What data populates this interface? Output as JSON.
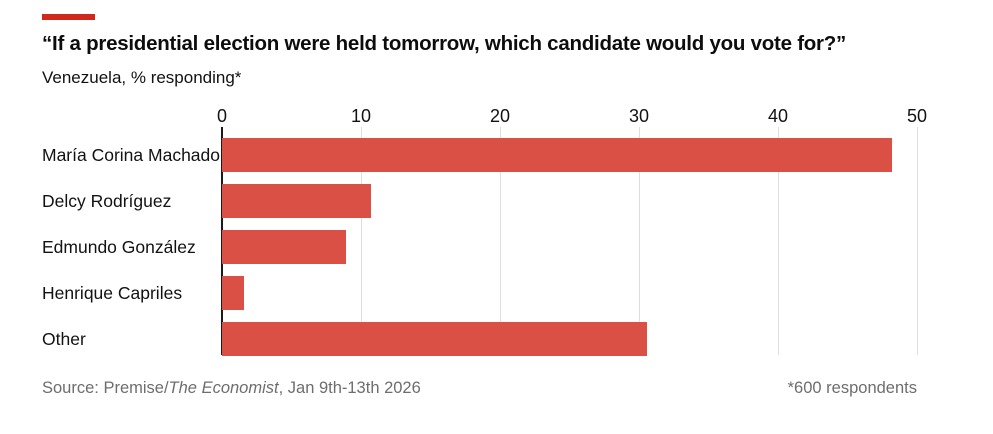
{
  "header": {
    "title": "“If a presidential election were held tomorrow, which candidate would you vote for?”",
    "subtitle": "Venezuela, % responding*"
  },
  "chart_data": {
    "type": "bar",
    "orientation": "horizontal",
    "title": "“If a presidential election were held tomorrow, which candidate would you vote for?”",
    "subtitle": "Venezuela, % responding*",
    "categories": [
      "María Corina Machado",
      "Delcy Rodríguez",
      "Edmundo González",
      "Henrique Capriles",
      "Other"
    ],
    "values": [
      48.2,
      10.7,
      8.9,
      1.6,
      30.6
    ],
    "x_ticks": [
      0,
      10,
      20,
      30,
      40,
      50
    ],
    "xlim": [
      0,
      50
    ],
    "xlabel": "",
    "ylabel": "",
    "grid": "vertical-gridlines-on",
    "legend": "none"
  },
  "footer": {
    "source_prefix": "Source: Premise/",
    "source_publication": "The Economist",
    "source_suffix": ", Jan 9th-13th 2026",
    "note": "*600 respondents"
  },
  "colors": {
    "accent_red": "#d1281e",
    "bar_red": "#db5045",
    "gridline": "#dedede",
    "axis_black": "#1a1a1a",
    "text_dark": "#121212",
    "text_muted": "#6e6e6e"
  }
}
